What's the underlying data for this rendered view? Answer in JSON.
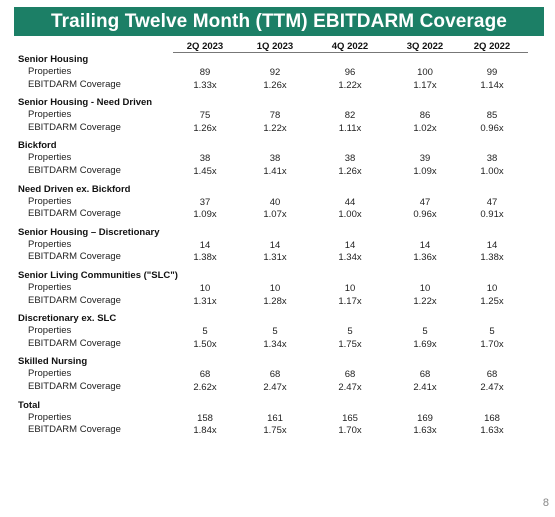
{
  "title": "Trailing Twelve Month (TTM) EBITDARM Coverage",
  "columns": [
    "2Q 2023",
    "1Q 2023",
    "4Q 2022",
    "3Q 2022",
    "2Q 2022"
  ],
  "sections": [
    {
      "name": "Senior Housing",
      "rows": [
        {
          "label": "Properties",
          "values": [
            "89",
            "92",
            "96",
            "100",
            "99"
          ]
        },
        {
          "label": "EBITDARM Coverage",
          "values": [
            "1.33x",
            "1.26x",
            "1.22x",
            "1.17x",
            "1.14x"
          ]
        }
      ]
    },
    {
      "name": "Senior Housing - Need Driven",
      "rows": [
        {
          "label": "Properties",
          "values": [
            "75",
            "78",
            "82",
            "86",
            "85"
          ]
        },
        {
          "label": "EBITDARM Coverage",
          "values": [
            "1.26x",
            "1.22x",
            "1.11x",
            "1.02x",
            "0.96x"
          ]
        }
      ]
    },
    {
      "name": "Bickford",
      "rows": [
        {
          "label": "Properties",
          "values": [
            "38",
            "38",
            "38",
            "39",
            "38"
          ]
        },
        {
          "label": "EBITDARM Coverage",
          "values": [
            "1.45x",
            "1.41x",
            "1.26x",
            "1.09x",
            "1.00x"
          ]
        }
      ]
    },
    {
      "name": "Need Driven ex. Bickford",
      "rows": [
        {
          "label": "Properties",
          "values": [
            "37",
            "40",
            "44",
            "47",
            "47"
          ]
        },
        {
          "label": "EBITDARM Coverage",
          "values": [
            "1.09x",
            "1.07x",
            "1.00x",
            "0.96x",
            "0.91x"
          ]
        }
      ]
    },
    {
      "name": "Senior Housing – Discretionary",
      "rows": [
        {
          "label": "Properties",
          "values": [
            "14",
            "14",
            "14",
            "14",
            "14"
          ]
        },
        {
          "label": "EBITDARM Coverage",
          "values": [
            "1.38x",
            "1.31x",
            "1.34x",
            "1.36x",
            "1.38x"
          ]
        }
      ]
    },
    {
      "name": "Senior Living Communities (\"SLC\")",
      "rows": [
        {
          "label": "Properties",
          "values": [
            "10",
            "10",
            "10",
            "10",
            "10"
          ]
        },
        {
          "label": "EBITDARM Coverage",
          "values": [
            "1.31x",
            "1.28x",
            "1.17x",
            "1.22x",
            "1.25x"
          ]
        }
      ]
    },
    {
      "name": "Discretionary ex. SLC",
      "rows": [
        {
          "label": "Properties",
          "values": [
            "5",
            "5",
            "5",
            "5",
            "5"
          ]
        },
        {
          "label": "EBITDARM Coverage",
          "values": [
            "1.50x",
            "1.34x",
            "1.75x",
            "1.69x",
            "1.70x"
          ]
        }
      ]
    },
    {
      "name": "Skilled Nursing",
      "rows": [
        {
          "label": "Properties",
          "values": [
            "68",
            "68",
            "68",
            "68",
            "68"
          ]
        },
        {
          "label": "EBITDARM Coverage",
          "values": [
            "2.62x",
            "2.47x",
            "2.47x",
            "2.41x",
            "2.47x"
          ]
        }
      ]
    },
    {
      "name": "Total",
      "rows": [
        {
          "label": "Properties",
          "values": [
            "158",
            "161",
            "165",
            "169",
            "168"
          ]
        },
        {
          "label": "EBITDARM Coverage",
          "values": [
            "1.84x",
            "1.75x",
            "1.70x",
            "1.63x",
            "1.63x"
          ]
        }
      ]
    }
  ],
  "page_number": "8",
  "colors": {
    "banner": "#1c7f66",
    "banner_text": "#ffffff"
  }
}
